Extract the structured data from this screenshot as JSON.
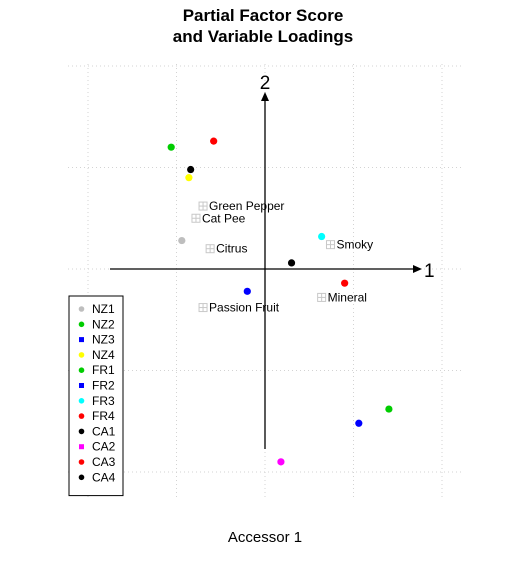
{
  "chart_data": {
    "type": "scatter",
    "title_line1": "Partial Factor Score",
    "title_line2": "and Variable Loadings",
    "xlabel": "Accessor 1",
    "ylabel": "",
    "axis1_label": "1",
    "axis2_label": "2",
    "xlim": [
      -1.0,
      1.0
    ],
    "ylim": [
      -1.0,
      1.0
    ],
    "grid": true,
    "legend_position": "bottom-left",
    "colors": {
      "gray": "#bebebe",
      "green": "#00cd00",
      "blue": "#0000ff",
      "yellow": "#ffff00",
      "cyan": "#00ffff",
      "red": "#ff0000",
      "black": "#000000",
      "magenta": "#ff00ff"
    },
    "variables": [
      {
        "name": "Green Pepper",
        "x": -0.35,
        "y": 0.31
      },
      {
        "name": "Cat Pee",
        "x": -0.39,
        "y": 0.25
      },
      {
        "name": "Citrus",
        "x": -0.31,
        "y": 0.1
      },
      {
        "name": "Smoky",
        "x": 0.37,
        "y": 0.12
      },
      {
        "name": "Mineral",
        "x": 0.32,
        "y": -0.14
      },
      {
        "name": "Passion Fruit",
        "x": -0.35,
        "y": -0.19
      }
    ],
    "legend": [
      {
        "name": "NZ1",
        "color": "#bebebe",
        "shape": "circle"
      },
      {
        "name": "NZ2",
        "color": "#00cd00",
        "shape": "circle"
      },
      {
        "name": "NZ3",
        "color": "#0000ff",
        "shape": "square"
      },
      {
        "name": "NZ4",
        "color": "#ffff00",
        "shape": "circle"
      },
      {
        "name": "FR1",
        "color": "#00cd00",
        "shape": "circle"
      },
      {
        "name": "FR2",
        "color": "#0000ff",
        "shape": "square"
      },
      {
        "name": "FR3",
        "color": "#00ffff",
        "shape": "circle"
      },
      {
        "name": "FR4",
        "color": "#ff0000",
        "shape": "circle"
      },
      {
        "name": "CA1",
        "color": "#000000",
        "shape": "circle"
      },
      {
        "name": "CA2",
        "color": "#ff00ff",
        "shape": "square"
      },
      {
        "name": "CA3",
        "color": "#ff0000",
        "shape": "circle"
      },
      {
        "name": "CA4",
        "color": "#000000",
        "shape": "circle"
      }
    ],
    "series": [
      {
        "name": "NZ1",
        "color": "#bebebe",
        "x": -0.47,
        "y": 0.14
      },
      {
        "name": "NZ2",
        "color": "#00cd00",
        "x": -0.53,
        "y": 0.6
      },
      {
        "name": "NZ3",
        "color": "#0000ff",
        "x": 0.53,
        "y": -0.76
      },
      {
        "name": "NZ4",
        "color": "#ffff00",
        "x": -0.43,
        "y": 0.45
      },
      {
        "name": "FR1",
        "color": "#00cd00",
        "x": 0.7,
        "y": -0.69
      },
      {
        "name": "FR2",
        "color": "#0000ff",
        "x": -0.1,
        "y": -0.11
      },
      {
        "name": "FR3",
        "color": "#00ffff",
        "x": 0.32,
        "y": 0.16
      },
      {
        "name": "FR4",
        "color": "#ff0000",
        "x": 0.45,
        "y": -0.07
      },
      {
        "name": "CA1",
        "color": "#000000",
        "x": 0.15,
        "y": 0.03
      },
      {
        "name": "CA2",
        "color": "#ff00ff",
        "x": 0.09,
        "y": -0.95
      },
      {
        "name": "CA3",
        "color": "#ff0000",
        "x": -0.29,
        "y": 0.63
      },
      {
        "name": "CA4",
        "color": "#000000",
        "x": -0.42,
        "y": 0.49
      }
    ]
  }
}
